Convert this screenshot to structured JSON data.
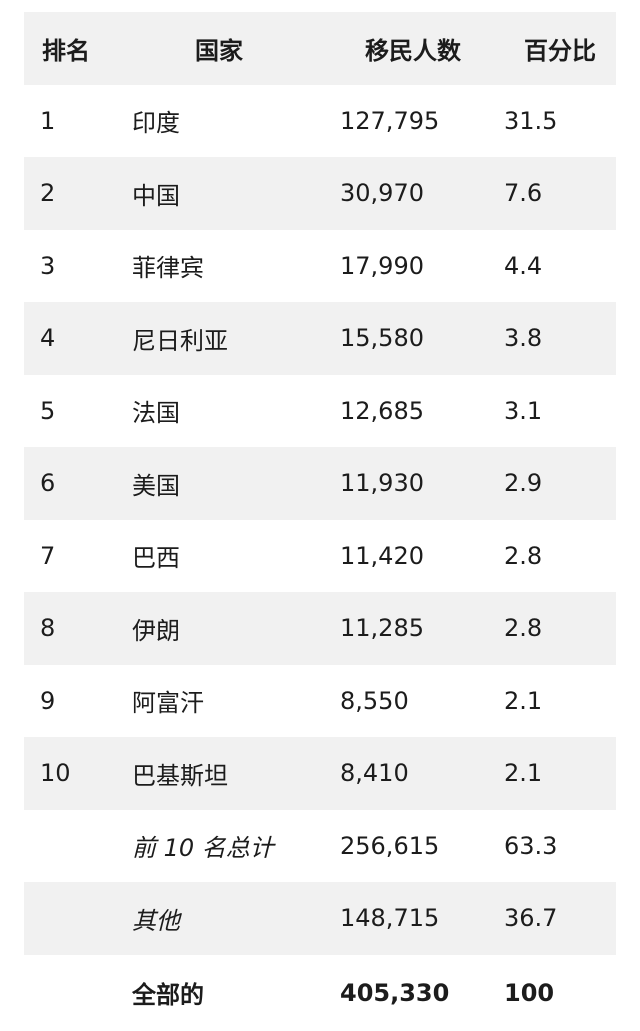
{
  "table": {
    "headers": {
      "rank": "排名",
      "country": "国家",
      "count": "移民人数",
      "percent": "百分比"
    },
    "rows": [
      {
        "rank": "1",
        "country": "印度",
        "count": "127,795",
        "percent": "31.5"
      },
      {
        "rank": "2",
        "country": "中国",
        "count": "30,970",
        "percent": "7.6"
      },
      {
        "rank": "3",
        "country": "菲律宾",
        "count": "17,990",
        "percent": "4.4"
      },
      {
        "rank": "4",
        "country": "尼日利亚",
        "count": "15,580",
        "percent": "3.8"
      },
      {
        "rank": "5",
        "country": "法国",
        "count": "12,685",
        "percent": "3.1"
      },
      {
        "rank": "6",
        "country": "美国",
        "count": "11,930",
        "percent": "2.9"
      },
      {
        "rank": "7",
        "country": "巴西",
        "count": "11,420",
        "percent": "2.8"
      },
      {
        "rank": "8",
        "country": "伊朗",
        "count": "11,285",
        "percent": "2.8"
      },
      {
        "rank": "9",
        "country": "阿富汗",
        "count": "8,550",
        "percent": "2.1"
      },
      {
        "rank": "10",
        "country": "巴基斯坦",
        "count": "8,410",
        "percent": "2.1"
      }
    ],
    "summary": {
      "top10": {
        "label": "前 10 名总计",
        "count": "256,615",
        "percent": "63.3"
      },
      "other": {
        "label": "其他",
        "count": "148,715",
        "percent": "36.7"
      },
      "total": {
        "label": "全部的",
        "count": "405,330",
        "percent": "100"
      }
    }
  }
}
